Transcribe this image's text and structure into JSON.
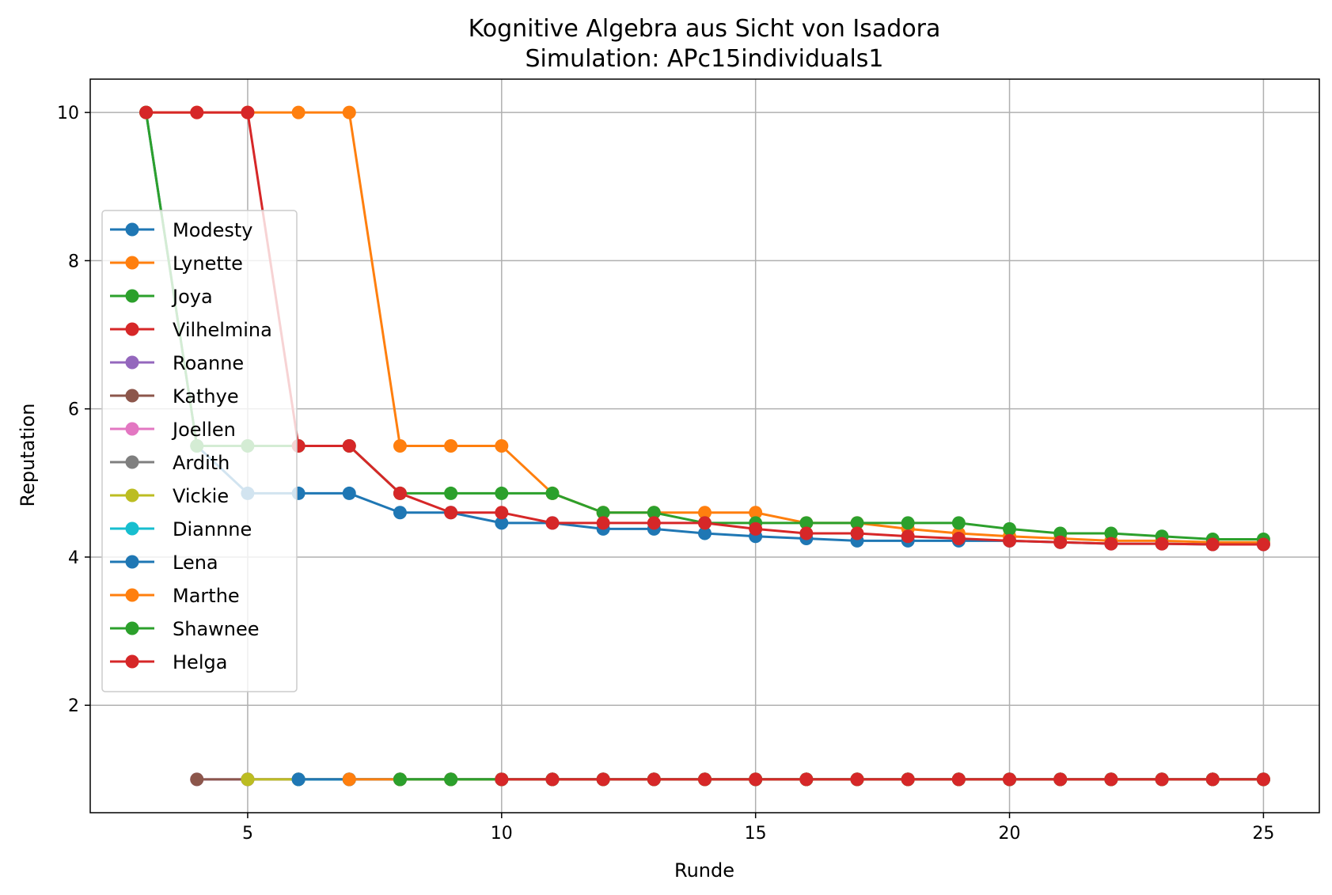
{
  "chart_data": {
    "type": "line",
    "title": "Kognitive Algebra aus Sicht von Isadora",
    "subtitle": "Simulation: APc15individuals1",
    "xlabel": "Runde",
    "ylabel": "Reputation",
    "xlim": [
      1.9,
      26.1
    ],
    "ylim": [
      0.55,
      10.45
    ],
    "xticks": [
      5,
      10,
      15,
      20,
      25
    ],
    "yticks": [
      2,
      4,
      6,
      8,
      10
    ],
    "grid": true,
    "legend_position": "center-left",
    "series": [
      {
        "name": "Modesty",
        "color": "#1f77b4",
        "x": [
          3,
          4,
          5,
          6,
          7,
          8,
          9,
          10,
          11,
          12,
          13,
          14,
          15,
          16,
          17,
          18,
          19,
          20,
          21,
          22,
          23,
          24,
          25
        ],
        "y": [
          10,
          5.5,
          4.86,
          4.86,
          4.86,
          4.6,
          4.6,
          4.46,
          4.46,
          4.38,
          4.38,
          4.32,
          4.28,
          4.25,
          4.22,
          4.22,
          4.22,
          4.22,
          4.2,
          4.18,
          4.18,
          4.17,
          4.17
        ]
      },
      {
        "name": "Lynette",
        "color": "#ff7f0e",
        "x": [
          3,
          4,
          5,
          6,
          7,
          8,
          9,
          10,
          11,
          12,
          13,
          14,
          15,
          16,
          17,
          18,
          19,
          20,
          21,
          22,
          23,
          24,
          25
        ],
        "y": [
          10,
          10,
          10,
          10,
          10,
          5.5,
          5.5,
          5.5,
          4.86,
          4.6,
          4.6,
          4.6,
          4.6,
          4.46,
          4.46,
          4.38,
          4.32,
          4.28,
          4.25,
          4.22,
          4.22,
          4.2,
          4.2
        ]
      },
      {
        "name": "Joya",
        "color": "#2ca02c",
        "x": [
          3,
          4,
          5,
          6,
          7,
          8,
          9,
          10,
          11,
          12,
          13,
          14,
          15,
          16,
          17,
          18,
          19,
          20,
          21,
          22,
          23,
          24,
          25
        ],
        "y": [
          10,
          5.5,
          5.5,
          5.5,
          5.5,
          4.86,
          4.86,
          4.86,
          4.86,
          4.6,
          4.6,
          4.46,
          4.46,
          4.46,
          4.46,
          4.46,
          4.46,
          4.38,
          4.32,
          4.32,
          4.28,
          4.24,
          4.24
        ]
      },
      {
        "name": "Vilhelmina",
        "color": "#d62728",
        "x": [
          3,
          4,
          5,
          6,
          7,
          8,
          9,
          10,
          11,
          12,
          13,
          14,
          15,
          16,
          17,
          18,
          19,
          20,
          21,
          22,
          23,
          24,
          25
        ],
        "y": [
          10,
          10,
          10,
          5.5,
          5.5,
          4.86,
          4.6,
          4.6,
          4.46,
          4.46,
          4.46,
          4.46,
          4.38,
          4.32,
          4.32,
          4.28,
          4.25,
          4.22,
          4.2,
          4.18,
          4.18,
          4.17,
          4.17
        ]
      },
      {
        "name": "Roanne",
        "color": "#9467bd",
        "x": [
          4,
          5,
          6,
          7,
          8,
          9,
          10,
          11,
          12,
          13,
          14,
          15,
          16,
          17,
          18,
          19,
          20,
          21,
          22,
          23,
          24,
          25
        ],
        "y": [
          1,
          1,
          1,
          1,
          1,
          1,
          1,
          1,
          1,
          1,
          1,
          1,
          1,
          1,
          1,
          1,
          1,
          1,
          1,
          1,
          1,
          1
        ]
      },
      {
        "name": "Kathye",
        "color": "#8c564b",
        "x": [
          4,
          5,
          6,
          7,
          8,
          9,
          10,
          11,
          12,
          13,
          14,
          15,
          16,
          17,
          18,
          19,
          20,
          21,
          22,
          23,
          24,
          25
        ],
        "y": [
          1,
          1,
          1,
          1,
          1,
          1,
          1,
          1,
          1,
          1,
          1,
          1,
          1,
          1,
          1,
          1,
          1,
          1,
          1,
          1,
          1,
          1
        ]
      },
      {
        "name": "Joellen",
        "color": "#e377c2",
        "x": [
          5,
          6,
          7,
          8,
          9,
          10,
          11,
          12,
          13,
          14,
          15,
          16,
          17,
          18,
          19,
          20,
          21,
          22,
          23,
          24,
          25
        ],
        "y": [
          1,
          1,
          1,
          1,
          1,
          1,
          1,
          1,
          1,
          1,
          1,
          1,
          1,
          1,
          1,
          1,
          1,
          1,
          1,
          1,
          1
        ]
      },
      {
        "name": "Ardith",
        "color": "#7f7f7f",
        "x": [
          5,
          6,
          7,
          8,
          9,
          10,
          11,
          12,
          13,
          14,
          15,
          16,
          17,
          18,
          19,
          20,
          21,
          22,
          23,
          24,
          25
        ],
        "y": [
          1,
          1,
          1,
          1,
          1,
          1,
          1,
          1,
          1,
          1,
          1,
          1,
          1,
          1,
          1,
          1,
          1,
          1,
          1,
          1,
          1
        ]
      },
      {
        "name": "Vickie",
        "color": "#bcbd22",
        "x": [
          5,
          6,
          7,
          8,
          9,
          10,
          11,
          12,
          13,
          14,
          15,
          16,
          17,
          18,
          19,
          20,
          21,
          22,
          23,
          24,
          25
        ],
        "y": [
          1,
          1,
          1,
          1,
          1,
          1,
          1,
          1,
          1,
          1,
          1,
          1,
          1,
          1,
          1,
          1,
          1,
          1,
          1,
          1,
          1
        ]
      },
      {
        "name": "Diannne",
        "color": "#17becf",
        "x": [
          6,
          7,
          8,
          9,
          10,
          11,
          12,
          13,
          14,
          15,
          16,
          17,
          18,
          19,
          20,
          21,
          22,
          23,
          24,
          25
        ],
        "y": [
          1,
          1,
          1,
          1,
          1,
          1,
          1,
          1,
          1,
          1,
          1,
          1,
          1,
          1,
          1,
          1,
          1,
          1,
          1,
          1
        ]
      },
      {
        "name": "Lena",
        "color": "#1f77b4",
        "x": [
          6,
          7,
          8,
          9,
          10,
          11,
          12,
          13,
          14,
          15,
          16,
          17,
          18,
          19,
          20,
          21,
          22,
          23,
          24,
          25
        ],
        "y": [
          1,
          1,
          1,
          1,
          1,
          1,
          1,
          1,
          1,
          1,
          1,
          1,
          1,
          1,
          1,
          1,
          1,
          1,
          1,
          1
        ]
      },
      {
        "name": "Marthe",
        "color": "#ff7f0e",
        "x": [
          7,
          8,
          9,
          10,
          11,
          12,
          13,
          14,
          15,
          16,
          17,
          18,
          19,
          20,
          21,
          22,
          23,
          24,
          25
        ],
        "y": [
          1,
          1,
          1,
          1,
          1,
          1,
          1,
          1,
          1,
          1,
          1,
          1,
          1,
          1,
          1,
          1,
          1,
          1,
          1
        ]
      },
      {
        "name": "Shawnee",
        "color": "#2ca02c",
        "x": [
          8,
          9,
          10,
          11,
          12,
          13,
          14,
          15,
          16,
          17,
          18,
          19,
          20,
          21,
          22,
          23,
          24,
          25
        ],
        "y": [
          1,
          1,
          1,
          1,
          1,
          1,
          1,
          1,
          1,
          1,
          1,
          1,
          1,
          1,
          1,
          1,
          1,
          1
        ]
      },
      {
        "name": "Helga",
        "color": "#d62728",
        "x": [
          10,
          11,
          12,
          13,
          14,
          15,
          16,
          17,
          18,
          19,
          20,
          21,
          22,
          23,
          24,
          25
        ],
        "y": [
          1,
          1,
          1,
          1,
          1,
          1,
          1,
          1,
          1,
          1,
          1,
          1,
          1,
          1,
          1,
          1
        ]
      }
    ]
  }
}
